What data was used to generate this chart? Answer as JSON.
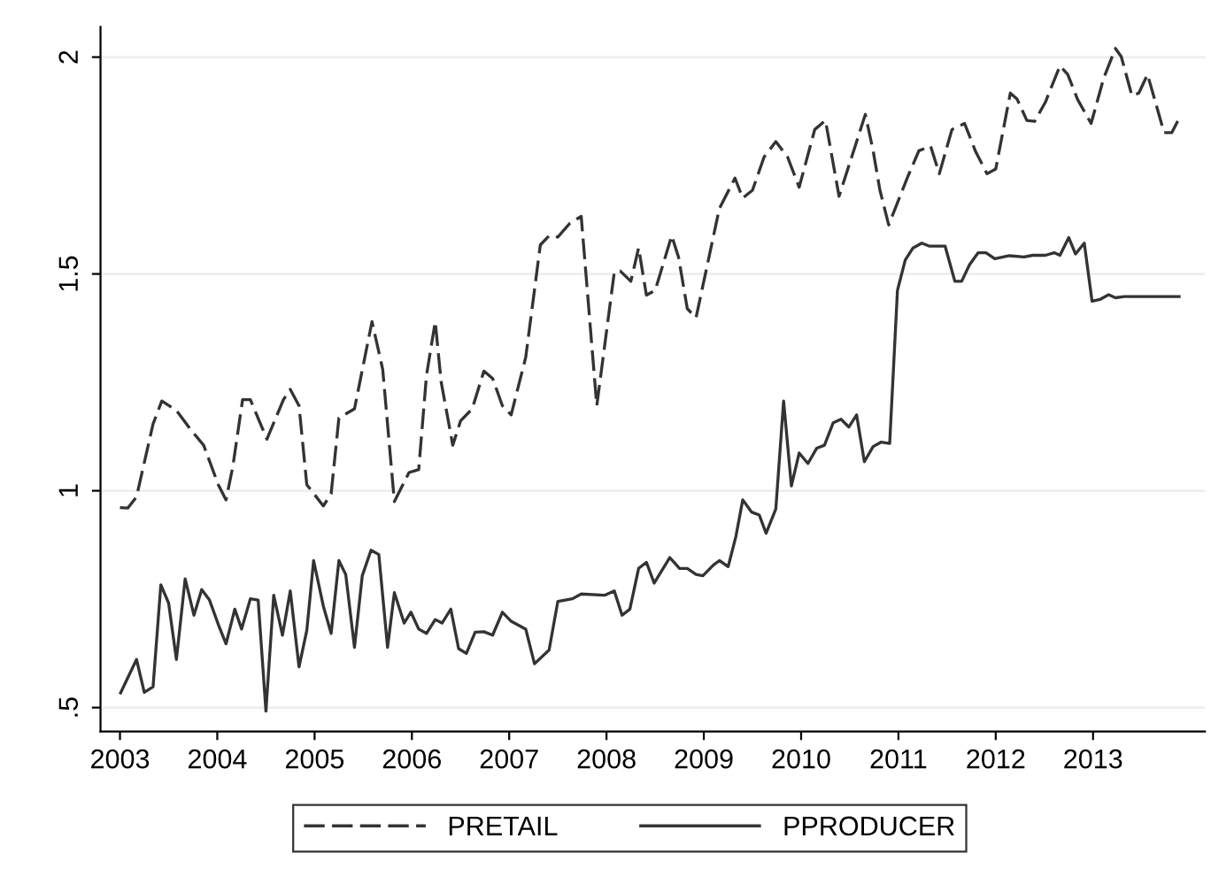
{
  "chart_data": {
    "type": "line",
    "xlim": [
      2002.8,
      2014.15
    ],
    "ylim": [
      0.445,
      2.07
    ],
    "xticks": [
      2003,
      2004,
      2005,
      2006,
      2007,
      2008,
      2009,
      2010,
      2011,
      2012,
      2013
    ],
    "yticks": [
      {
        "value": 0.5,
        "label": ".5"
      },
      1,
      1.5,
      2
    ],
    "grid": "y",
    "legend": "bottom",
    "marker": "none",
    "series": [
      {
        "name": "PRETAIL",
        "color": "#333333",
        "line_style": "dashed",
        "x": [
          2003.0,
          2003.08,
          2003.17,
          2003.34,
          2003.43,
          2003.58,
          2003.73,
          2003.86,
          2004.01,
          2004.09,
          2004.16,
          2004.26,
          2004.34,
          2004.51,
          2004.68,
          2004.75,
          2004.84,
          2004.92,
          2005.09,
          2005.17,
          2005.25,
          2005.41,
          2005.59,
          2005.7,
          2005.82,
          2005.97,
          2006.07,
          2006.15,
          2006.24,
          2006.3,
          2006.42,
          2006.5,
          2006.62,
          2006.74,
          2006.83,
          2006.93,
          2007.02,
          2007.17,
          2007.32,
          2007.41,
          2007.5,
          2007.62,
          2007.74,
          2007.9,
          2008.08,
          2008.14,
          2008.25,
          2008.33,
          2008.41,
          2008.5,
          2008.67,
          2008.74,
          2008.83,
          2008.92,
          2009.16,
          2009.32,
          2009.4,
          2009.5,
          2009.62,
          2009.74,
          2009.86,
          2009.98,
          2010.14,
          2010.25,
          2010.39,
          2010.5,
          2010.66,
          2010.74,
          2010.81,
          2010.9,
          2011.09,
          2011.21,
          2011.33,
          2011.42,
          2011.55,
          2011.68,
          2011.79,
          2011.91,
          2012.0,
          2012.15,
          2012.22,
          2012.32,
          2012.4,
          2012.51,
          2012.66,
          2012.74,
          2012.84,
          2012.98,
          2013.11,
          2013.23,
          2013.29,
          2013.4,
          2013.47,
          2013.56,
          2013.73,
          2013.81,
          2013.9
        ],
        "values": [
          0.961,
          0.96,
          0.986,
          1.154,
          1.207,
          1.185,
          1.14,
          1.105,
          1.014,
          0.979,
          1.056,
          1.21,
          1.21,
          1.119,
          1.21,
          1.234,
          1.196,
          1.014,
          0.965,
          0.993,
          1.168,
          1.189,
          1.39,
          1.28,
          0.975,
          1.042,
          1.049,
          1.266,
          1.39,
          1.252,
          1.105,
          1.161,
          1.189,
          1.276,
          1.259,
          1.196,
          1.175,
          1.308,
          1.567,
          1.588,
          1.585,
          1.616,
          1.633,
          1.196,
          1.504,
          1.507,
          1.483,
          1.56,
          1.451,
          1.462,
          1.588,
          1.539,
          1.42,
          1.399,
          1.651,
          1.721,
          1.675,
          1.693,
          1.77,
          1.805,
          1.77,
          1.7,
          1.833,
          1.854,
          1.679,
          1.756,
          1.868,
          1.784,
          1.693,
          1.613,
          1.721,
          1.784,
          1.795,
          1.731,
          1.833,
          1.847,
          1.784,
          1.731,
          1.742,
          1.917,
          1.903,
          1.854,
          1.852,
          1.896,
          1.98,
          1.96,
          1.903,
          1.847,
          1.952,
          2.02,
          2.001,
          1.911,
          1.917,
          1.96,
          1.826,
          1.826,
          1.866
        ]
      },
      {
        "name": "PPRODUCER",
        "color": "#333333",
        "line_style": "solid",
        "x": [
          2003.0,
          2003.17,
          2003.25,
          2003.34,
          2003.42,
          2003.5,
          2003.58,
          2003.67,
          2003.76,
          2003.84,
          2003.92,
          2004.01,
          2004.09,
          2004.18,
          2004.25,
          2004.34,
          2004.42,
          2004.5,
          2004.58,
          2004.67,
          2004.75,
          2004.84,
          2004.92,
          2004.99,
          2005.09,
          2005.17,
          2005.25,
          2005.32,
          2005.41,
          2005.49,
          2005.58,
          2005.66,
          2005.75,
          2005.82,
          2005.92,
          2005.99,
          2006.07,
          2006.15,
          2006.24,
          2006.31,
          2006.4,
          2006.48,
          2006.56,
          2006.65,
          2006.74,
          2006.83,
          2006.93,
          2007.02,
          2007.17,
          2007.26,
          2007.41,
          2007.5,
          2007.65,
          2007.74,
          2007.98,
          2008.08,
          2008.16,
          2008.24,
          2008.33,
          2008.41,
          2008.49,
          2008.65,
          2008.75,
          2008.83,
          2008.92,
          2008.99,
          2009.1,
          2009.16,
          2009.25,
          2009.33,
          2009.4,
          2009.49,
          2009.57,
          2009.64,
          2009.74,
          2009.82,
          2009.9,
          2009.98,
          2010.07,
          2010.16,
          2010.24,
          2010.33,
          2010.41,
          2010.49,
          2010.57,
          2010.65,
          2010.74,
          2010.82,
          2010.91,
          2010.99,
          2011.07,
          2011.15,
          2011.24,
          2011.32,
          2011.48,
          2011.58,
          2011.65,
          2011.73,
          2011.82,
          2011.9,
          2011.99,
          2012.14,
          2012.29,
          2012.38,
          2012.51,
          2012.6,
          2012.66,
          2012.75,
          2012.82,
          2012.91,
          2012.99,
          2013.07,
          2013.16,
          2013.23,
          2013.32,
          2013.9
        ],
        "values": [
          0.531,
          0.611,
          0.535,
          0.548,
          0.783,
          0.741,
          0.611,
          0.797,
          0.713,
          0.772,
          0.748,
          0.692,
          0.647,
          0.727,
          0.681,
          0.751,
          0.748,
          0.492,
          0.759,
          0.667,
          0.769,
          0.594,
          0.678,
          0.839,
          0.734,
          0.671,
          0.839,
          0.807,
          0.639,
          0.804,
          0.863,
          0.853,
          0.639,
          0.765,
          0.695,
          0.72,
          0.681,
          0.671,
          0.703,
          0.695,
          0.727,
          0.636,
          0.625,
          0.674,
          0.675,
          0.667,
          0.72,
          0.699,
          0.681,
          0.601,
          0.633,
          0.745,
          0.751,
          0.762,
          0.759,
          0.769,
          0.713,
          0.727,
          0.821,
          0.835,
          0.787,
          0.846,
          0.821,
          0.821,
          0.807,
          0.804,
          0.829,
          0.839,
          0.825,
          0.895,
          0.979,
          0.951,
          0.944,
          0.902,
          0.958,
          1.207,
          1.011,
          1.087,
          1.063,
          1.098,
          1.105,
          1.157,
          1.165,
          1.147,
          1.175,
          1.067,
          1.102,
          1.112,
          1.109,
          1.462,
          1.532,
          1.56,
          1.571,
          1.564,
          1.564,
          1.483,
          1.483,
          1.521,
          1.549,
          1.549,
          1.535,
          1.542,
          1.539,
          1.543,
          1.543,
          1.549,
          1.543,
          1.584,
          1.546,
          1.571,
          1.437,
          1.441,
          1.452,
          1.445,
          1.448,
          1.448
        ]
      }
    ]
  }
}
